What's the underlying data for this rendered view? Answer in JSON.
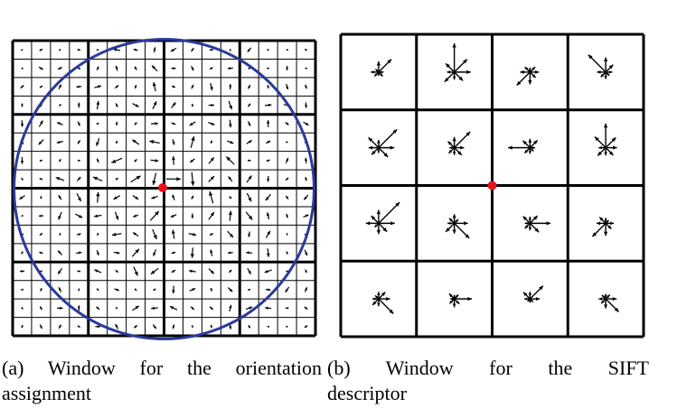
{
  "panels": [
    {
      "id": "a",
      "caption_line1": "(a) Window for the orientation",
      "caption_line2": "assignment",
      "grid_cells": 16,
      "major_blocks": 4,
      "circle_color": "#2a3a9c",
      "keypoint_color": "#e8101a"
    },
    {
      "id": "b",
      "caption_line1": "(b)    Window    for    the    SIFT",
      "caption_line2": "descriptor",
      "grid_cells": 4,
      "histogram_bins": 8,
      "keypoint_color": "#e8101a"
    }
  ],
  "colors": {
    "line": "#000000",
    "background": "#ffffff"
  }
}
